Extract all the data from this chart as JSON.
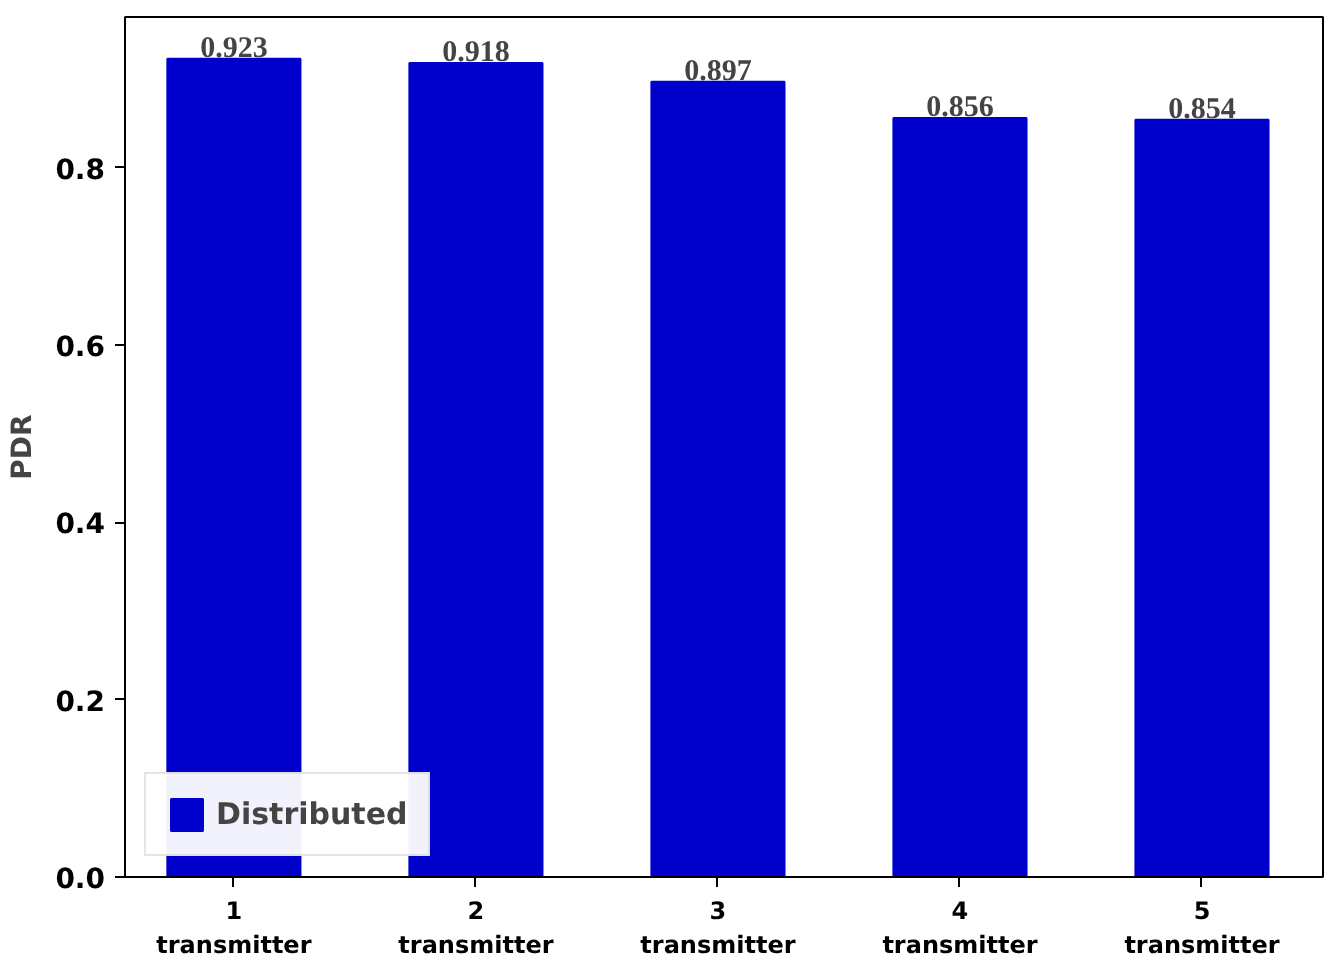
{
  "chart_data": {
    "type": "bar",
    "ylabel": "PDR",
    "categories": [
      "1\ntransmitter",
      "2\ntransmitter",
      "3\ntransmitter",
      "4\ntransmitter",
      "5\ntransmitter"
    ],
    "series": [
      {
        "name": "Distributed",
        "color": "#0000cc",
        "values": [
          0.923,
          0.918,
          0.897,
          0.856,
          0.854
        ]
      }
    ],
    "ylim": [
      0,
      0.97
    ],
    "yticks": [
      "0.0",
      "0.2",
      "0.4",
      "0.6",
      "0.8"
    ],
    "data_labels": true,
    "legend": "bottom left",
    "grid": false
  }
}
